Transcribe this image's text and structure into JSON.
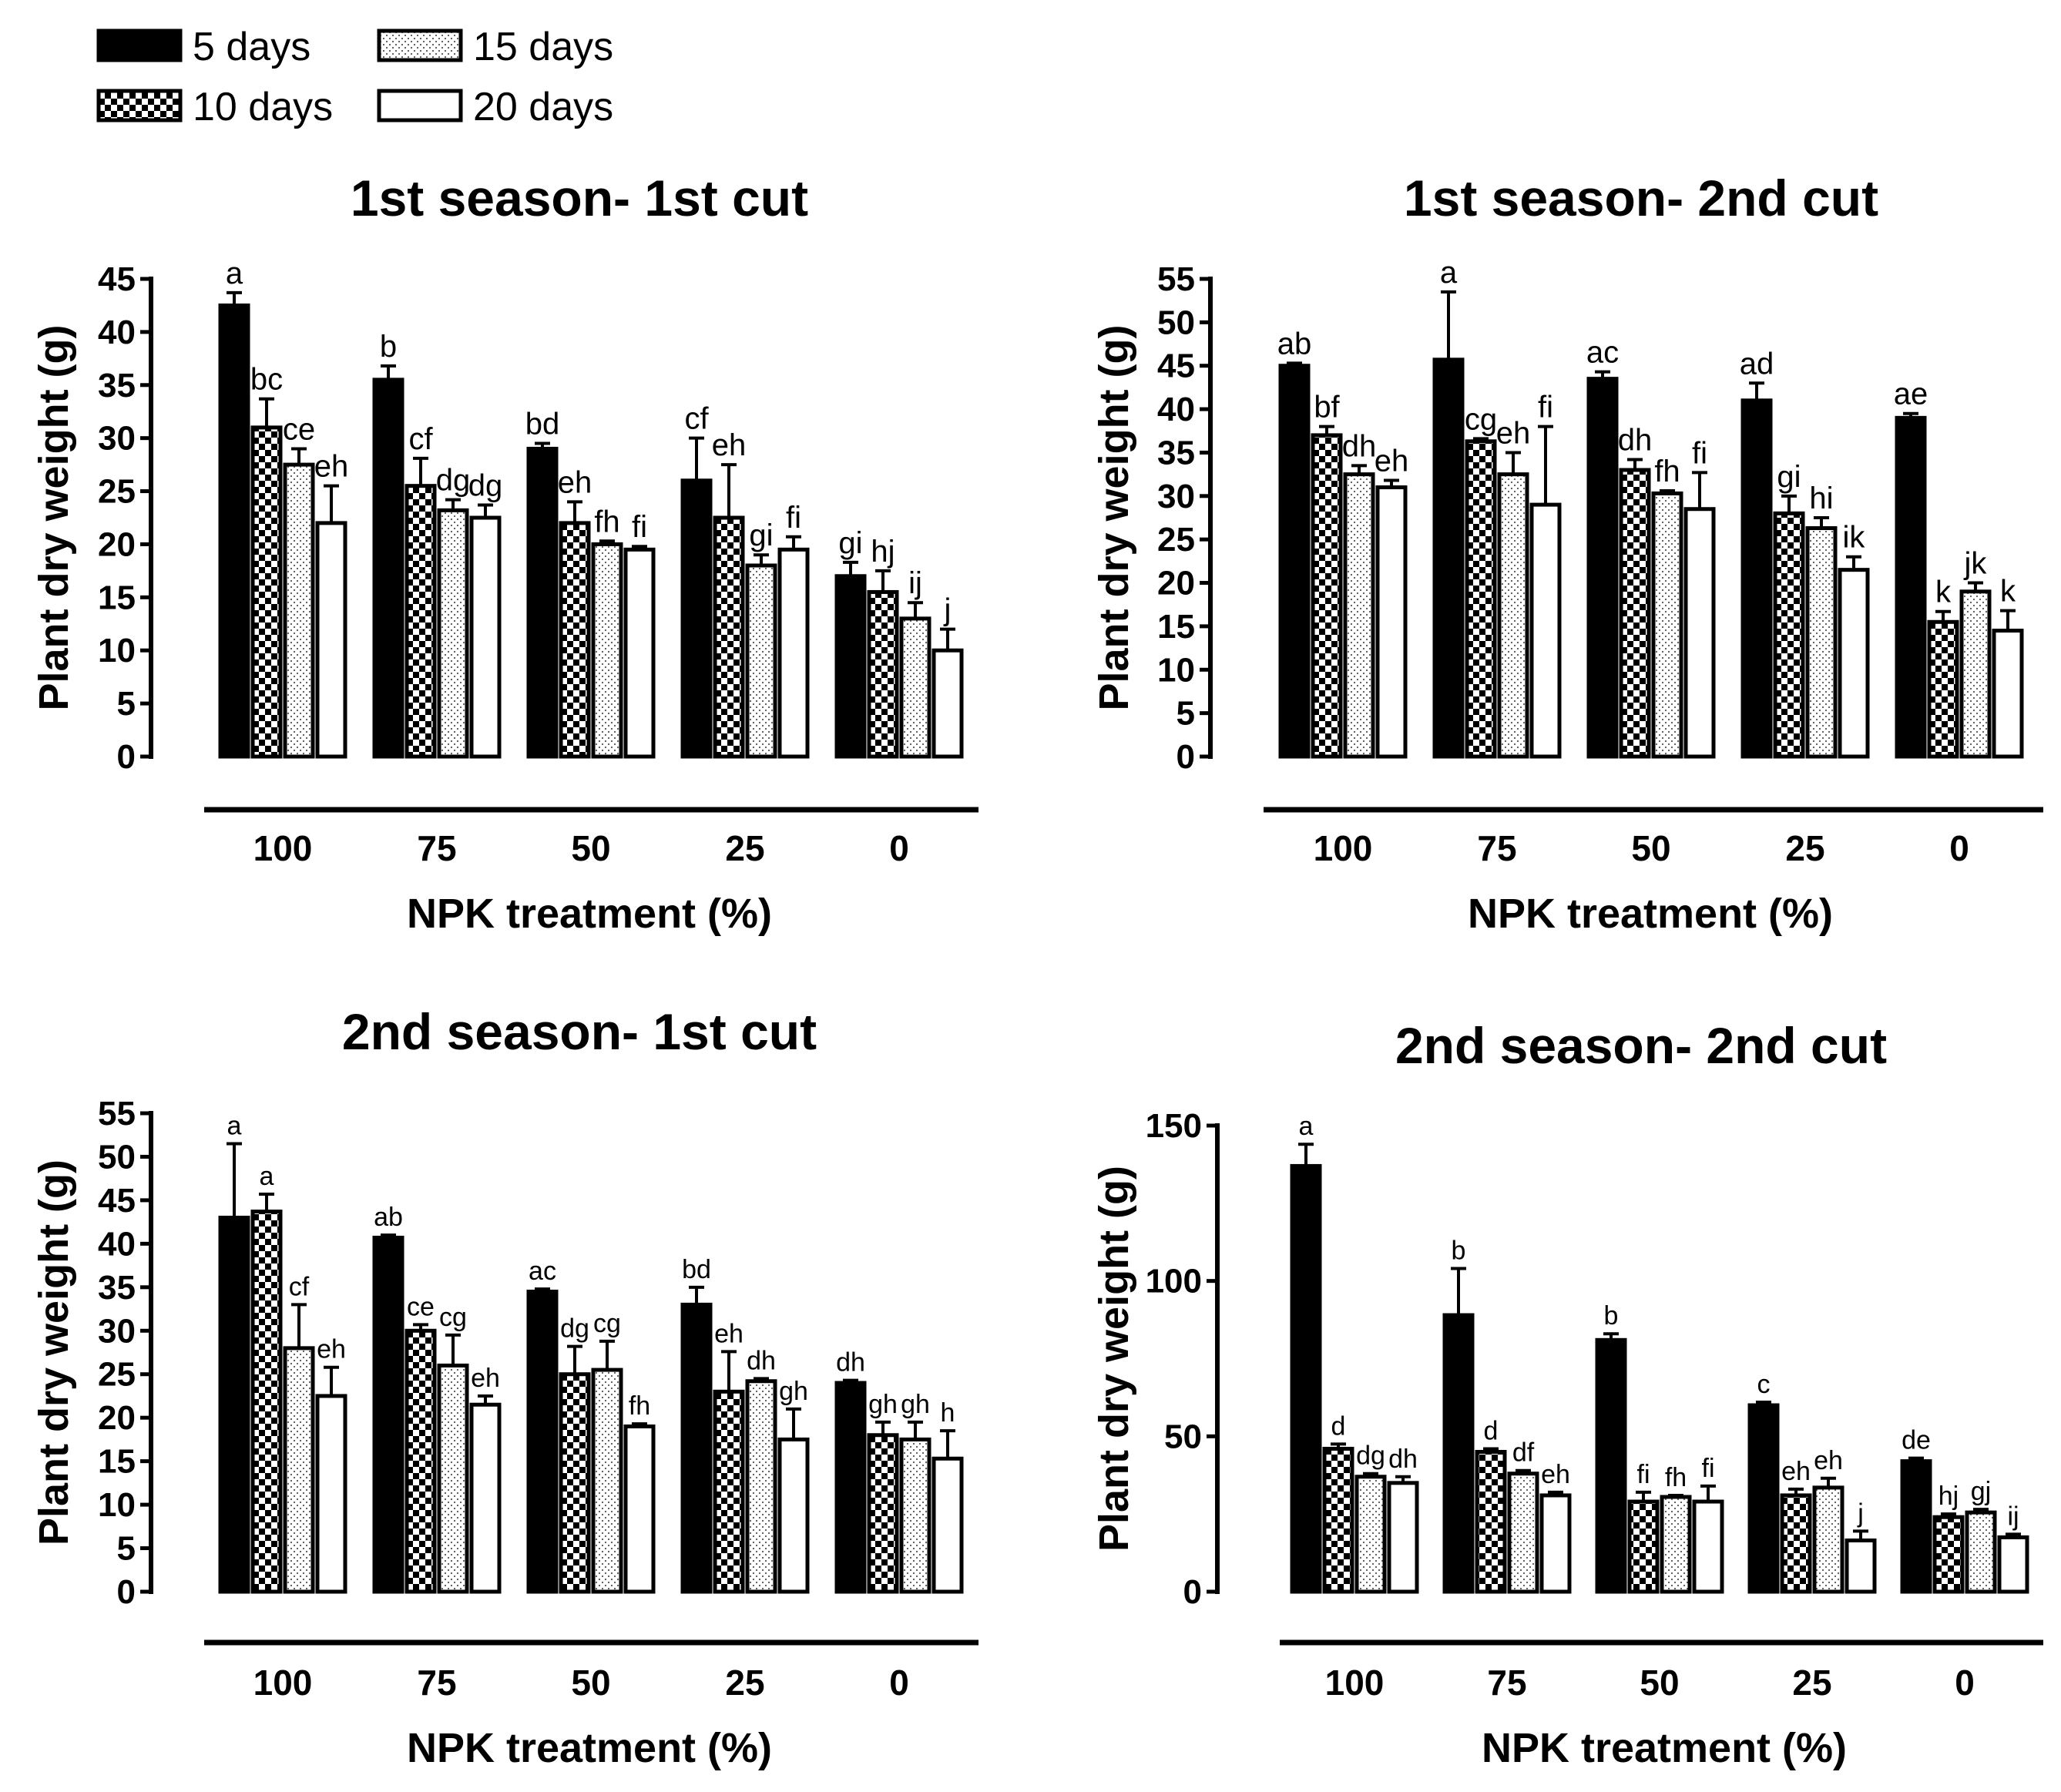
{
  "legend": {
    "items": [
      {
        "label": "5 days",
        "pattern": "solid"
      },
      {
        "label": "10 days",
        "pattern": "checker"
      },
      {
        "label": "15 days",
        "pattern": "dots"
      },
      {
        "label": "20 days",
        "pattern": "white"
      }
    ]
  },
  "chart_data": [
    {
      "type": "bar",
      "title": "1st season- 1st cut",
      "xlabel": "NPK treatment (%)",
      "ylabel": "Plant dry weight (g)",
      "ylim": [
        0,
        45
      ],
      "yticks": [
        "0",
        "5",
        "10",
        "15",
        "20",
        "25",
        "30",
        "35",
        "40",
        "45"
      ],
      "categories": [
        "100",
        "75",
        "50",
        "25",
        "0"
      ],
      "series": [
        {
          "name": "5 days",
          "values": [
            42.5,
            35.5,
            29,
            26,
            17
          ],
          "errors": [
            1.2,
            1.3,
            0.5,
            4,
            1.3
          ],
          "labels": [
            "a",
            "b",
            "bd",
            "cf",
            "gi"
          ]
        },
        {
          "name": "10 days",
          "values": [
            31,
            25.5,
            22,
            22.5,
            15.5
          ],
          "errors": [
            2.7,
            2.6,
            2,
            5,
            2
          ],
          "labels": [
            "bc",
            "cf",
            "eh",
            "eh",
            "hj"
          ]
        },
        {
          "name": "15 days",
          "values": [
            27.5,
            23.2,
            20,
            18,
            13
          ],
          "errors": [
            1.5,
            1,
            0.3,
            1,
            1.5
          ],
          "labels": [
            "ce",
            "dg",
            "fh",
            "gi",
            "ij"
          ]
        },
        {
          "name": "20 days",
          "values": [
            22,
            22.5,
            19.5,
            19.5,
            10
          ],
          "errors": [
            3.5,
            1.2,
            0.3,
            1.2,
            2
          ],
          "labels": [
            "eh",
            "dg",
            "fi",
            "fi",
            "j"
          ]
        }
      ]
    },
    {
      "type": "bar",
      "title": "1st season- 2nd cut",
      "xlabel": "NPK treatment (%)",
      "ylabel": "Plant dry weight (g)",
      "ylim": [
        0,
        55
      ],
      "yticks": [
        "0",
        "5",
        "10",
        "15",
        "20",
        "25",
        "30",
        "35",
        "40",
        "45",
        "50",
        "55"
      ],
      "categories": [
        "100",
        "75",
        "50",
        "25",
        "0"
      ],
      "series": [
        {
          "name": "5 days",
          "values": [
            45,
            45.7,
            43.5,
            41,
            39
          ],
          "errors": [
            0.3,
            7.8,
            0.8,
            2,
            0.5
          ],
          "labels": [
            "ab",
            "a",
            "ac",
            "ad",
            "ae"
          ]
        },
        {
          "name": "10 days",
          "values": [
            37,
            36.3,
            33,
            28,
            15.5
          ],
          "errors": [
            1,
            0.3,
            1.2,
            2,
            1.2
          ],
          "labels": [
            "bf",
            "cg",
            "dh",
            "gi",
            "k"
          ]
        },
        {
          "name": "15 days",
          "values": [
            32.5,
            32.5,
            30.3,
            26.3,
            19
          ],
          "errors": [
            1,
            2.5,
            0.3,
            1.2,
            1
          ],
          "labels": [
            "dh",
            "eh",
            "fh",
            "hi",
            "jk"
          ]
        },
        {
          "name": "20 days",
          "values": [
            31,
            29,
            28.5,
            21.5,
            14.5
          ],
          "errors": [
            0.8,
            9,
            4.2,
            1.5,
            2.3
          ],
          "labels": [
            "eh",
            "fi",
            "fi",
            "ik",
            "k"
          ]
        }
      ]
    },
    {
      "type": "bar",
      "title": "2nd season- 1st cut",
      "xlabel": "NPK treatment (%)",
      "ylabel": "Plant dry weight (g)",
      "ylim": [
        0,
        55
      ],
      "yticks": [
        "0",
        "5",
        "10",
        "15",
        "20",
        "25",
        "30",
        "35",
        "40",
        "45",
        "50",
        "55"
      ],
      "categories": [
        "100",
        "75",
        "50",
        "25",
        "0"
      ],
      "series": [
        {
          "name": "5 days",
          "values": [
            43,
            40.7,
            34.5,
            33,
            24
          ],
          "errors": [
            8.5,
            0.3,
            0.3,
            2,
            0.3
          ],
          "labels": [
            "a",
            "ab",
            "ac",
            "bd",
            "dh"
          ]
        },
        {
          "name": "10 days",
          "values": [
            43.7,
            30,
            25,
            23,
            18
          ],
          "errors": [
            2,
            0.7,
            3.2,
            4.6,
            1.5
          ],
          "labels": [
            "a",
            "ce",
            "dg",
            "eh",
            "gh"
          ]
        },
        {
          "name": "15 days",
          "values": [
            28,
            26,
            25.5,
            24.2,
            17.5
          ],
          "errors": [
            5,
            3.5,
            3.3,
            0.3,
            2
          ],
          "labels": [
            "cf",
            "cg",
            "cg",
            "dh",
            "gh"
          ]
        },
        {
          "name": "20 days",
          "values": [
            22.5,
            21.5,
            19,
            17.5,
            15.3
          ],
          "errors": [
            3.3,
            1,
            0.3,
            3.5,
            3.2
          ],
          "labels": [
            "eh",
            "eh",
            "fh",
            "gh",
            "h"
          ]
        }
      ]
    },
    {
      "type": "bar",
      "title": "2nd season- 2nd cut",
      "xlabel": "NPK treatment (%)",
      "ylabel": "Plant dry weight (g)",
      "ylim": [
        0,
        150
      ],
      "yticks": [
        "0",
        "50",
        "100",
        "150"
      ],
      "categories": [
        "100",
        "75",
        "50",
        "25",
        "0"
      ],
      "series": [
        {
          "name": "5 days",
          "values": [
            137,
            89,
            81,
            60,
            42
          ],
          "errors": [
            7,
            15,
            2,
            1,
            1
          ],
          "labels": [
            "a",
            "b",
            "b",
            "c",
            "de"
          ]
        },
        {
          "name": "10 days",
          "values": [
            46,
            45,
            29,
            31,
            24
          ],
          "errors": [
            1.5,
            1,
            3,
            2,
            1
          ],
          "labels": [
            "d",
            "d",
            "fi",
            "eh",
            "hj"
          ]
        },
        {
          "name": "15 days",
          "values": [
            37,
            38,
            30.5,
            33.5,
            25.5
          ],
          "errors": [
            1,
            1,
            0.5,
            3,
            1
          ],
          "labels": [
            "dg",
            "df",
            "fh",
            "eh",
            "gj"
          ]
        },
        {
          "name": "20 days",
          "values": [
            35,
            31,
            29,
            16.5,
            17.5
          ],
          "errors": [
            2,
            1,
            5,
            3,
            1
          ],
          "labels": [
            "dh",
            "eh",
            "fi",
            "j",
            "ij"
          ]
        }
      ]
    }
  ]
}
